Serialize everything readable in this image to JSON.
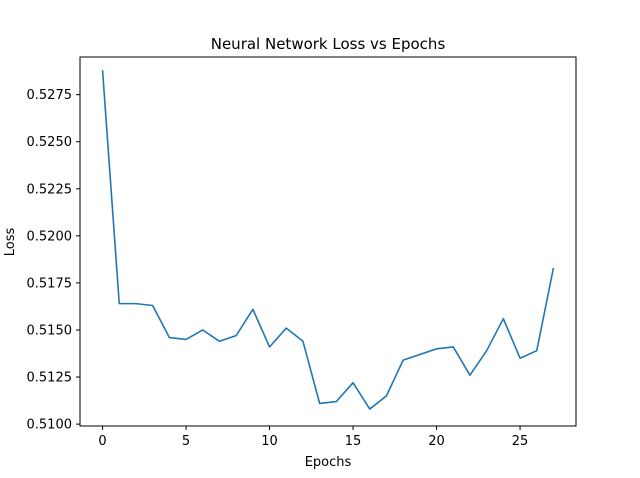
{
  "chart_data": {
    "type": "line",
    "title": "Neural Network Loss vs Epochs",
    "xlabel": "Epochs",
    "ylabel": "Loss",
    "xlim": [
      -1.35,
      28.35
    ],
    "ylim": [
      0.5099,
      0.5295
    ],
    "xticks": [
      0,
      5,
      10,
      15,
      20,
      25
    ],
    "yticks": [
      0.51,
      0.5125,
      0.515,
      0.5175,
      0.52,
      0.5225,
      0.525,
      0.5275
    ],
    "ytick_labels": [
      "0.5100",
      "0.5125",
      "0.5150",
      "0.5175",
      "0.5200",
      "0.5225",
      "0.5250",
      "0.5275"
    ],
    "grid": false,
    "series": [
      {
        "color": "#1f77b4",
        "x": [
          0,
          1,
          2,
          3,
          4,
          5,
          6,
          7,
          8,
          9,
          10,
          11,
          12,
          13,
          14,
          15,
          16,
          17,
          18,
          19,
          20,
          21,
          22,
          23,
          24,
          25,
          26,
          27
        ],
        "y": [
          0.5288,
          0.5164,
          0.5164,
          0.5163,
          0.5146,
          0.5145,
          0.515,
          0.5144,
          0.5147,
          0.5161,
          0.5141,
          0.5151,
          0.5144,
          0.5111,
          0.5112,
          0.5122,
          0.5108,
          0.5115,
          0.5134,
          0.5137,
          0.514,
          0.5141,
          0.5126,
          0.5139,
          0.5156,
          0.5135,
          0.5139,
          0.5183
        ]
      }
    ]
  }
}
